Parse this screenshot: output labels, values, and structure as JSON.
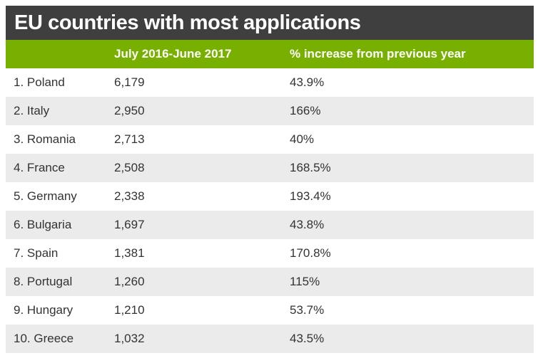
{
  "title": "EU countries with most applications",
  "colors": {
    "title_bg": "#3f3f3f",
    "header_bg": "#78b000",
    "alt_row_bg": "#ebebeb"
  },
  "chart_data": {
    "type": "table",
    "title": "EU countries with most applications",
    "columns": [
      "",
      "July 2016-June 2017",
      "% increase from previous year"
    ],
    "rows": [
      {
        "country": "1. Poland",
        "applications": "6,179",
        "increase": "43.9%"
      },
      {
        "country": "2. Italy",
        "applications": "2,950",
        "increase": "166%"
      },
      {
        "country": "3. Romania",
        "applications": "2,713",
        "increase": "40%"
      },
      {
        "country": "4. France",
        "applications": "2,508",
        "increase": "168.5%"
      },
      {
        "country": "5. Germany",
        "applications": "2,338",
        "increase": "193.4%"
      },
      {
        "country": "6. Bulgaria",
        "applications": "1,697",
        "increase": "43.8%"
      },
      {
        "country": "7. Spain",
        "applications": "1,381",
        "increase": "170.8%"
      },
      {
        "country": "8. Portugal",
        "applications": "1,260",
        "increase": "115%"
      },
      {
        "country": "9. Hungary",
        "applications": "1,210",
        "increase": "53.7%"
      },
      {
        "country": "10. Greece",
        "applications": "1,032",
        "increase": "43.5%"
      }
    ]
  }
}
